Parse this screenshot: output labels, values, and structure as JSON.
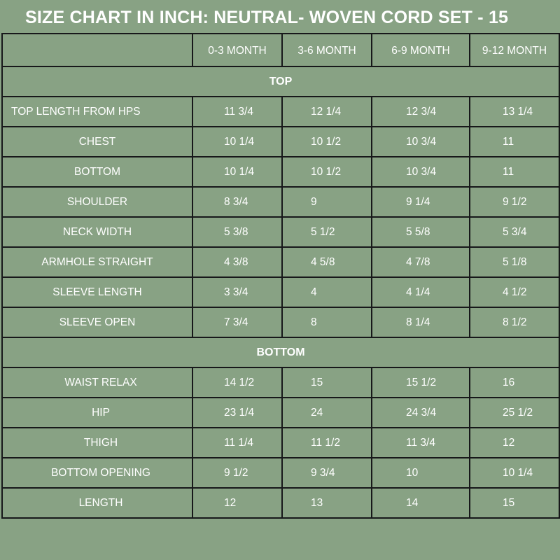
{
  "title": "SIZE CHART IN INCH: NEUTRAL- WOVEN CORD SET - 15",
  "header": [
    "",
    "0-3 MONTH",
    "3-6 MONTH",
    "6-9 MONTH",
    "9-12 MONTH"
  ],
  "sections": [
    {
      "name": "TOP",
      "rows": [
        {
          "label": "TOP LENGTH FROM HPS",
          "values": [
            "11 3/4",
            "12 1/4",
            "12 3/4",
            "13 1/4"
          ]
        },
        {
          "label": "CHEST",
          "values": [
            "10 1/4",
            "10 1/2",
            "10 3/4",
            "11"
          ]
        },
        {
          "label": "BOTTOM",
          "values": [
            "10 1/4",
            "10 1/2",
            "10 3/4",
            "11"
          ]
        },
        {
          "label": "SHOULDER",
          "values": [
            "8 3/4",
            "9",
            "9 1/4",
            "9 1/2"
          ]
        },
        {
          "label": "NECK WIDTH",
          "values": [
            "5 3/8",
            "5 1/2",
            "5 5/8",
            "5 3/4"
          ]
        },
        {
          "label": "ARMHOLE STRAIGHT",
          "values": [
            "4 3/8",
            "4 5/8",
            "4 7/8",
            "5 1/8"
          ]
        },
        {
          "label": "SLEEVE LENGTH",
          "values": [
            "3 3/4",
            "4",
            "4 1/4",
            "4 1/2"
          ]
        },
        {
          "label": "SLEEVE OPEN",
          "values": [
            "7 3/4",
            "8",
            "8 1/4",
            "8 1/2"
          ]
        }
      ]
    },
    {
      "name": "BOTTOM",
      "rows": [
        {
          "label": "WAIST RELAX",
          "values": [
            "14 1/2",
            "15",
            "15 1/2",
            "16"
          ]
        },
        {
          "label": "HIP",
          "values": [
            "23 1/4",
            "24",
            "24 3/4",
            "25 1/2"
          ]
        },
        {
          "label": "THIGH",
          "values": [
            "11 1/4",
            "11 1/2",
            "11 3/4",
            "12"
          ]
        },
        {
          "label": "BOTTOM OPENING",
          "values": [
            "9 1/2",
            "9 3/4",
            "10",
            "10 1/4"
          ]
        },
        {
          "label": "LENGTH",
          "values": [
            "12",
            "13",
            "14",
            "15"
          ]
        }
      ]
    }
  ],
  "colors": {
    "background": "#88a284",
    "border": "#17181a",
    "text": "#ffffff"
  }
}
